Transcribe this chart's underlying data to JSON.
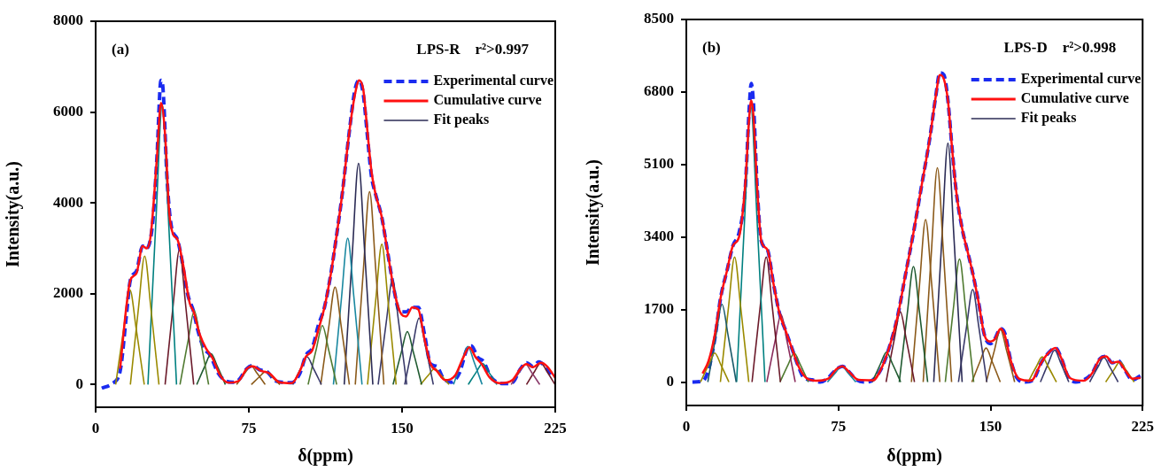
{
  "chart_data": [
    {
      "type": "line",
      "xlabel": "δ(ppm)",
      "ylabel": "Intensity(a.u.)",
      "xlim": [
        0,
        225
      ],
      "xticks": [
        0,
        75,
        150,
        225
      ],
      "ylim": [
        -500,
        8000
      ],
      "yticks": [
        0,
        2000,
        4000,
        6000,
        8000
      ],
      "legend": "top right",
      "marker": "none",
      "line_style": "solid",
      "annotations": [
        "(a)",
        "LPS-R    r²>0.997"
      ],
      "series": [
        {
          "name": "Experimental curve",
          "color": "#1a2bf0",
          "line_style": "dashed",
          "x": [
            3,
            8,
            12,
            15,
            17,
            20,
            23,
            25,
            28,
            30,
            32,
            33,
            35,
            37,
            40,
            42,
            45,
            48,
            50,
            53,
            56,
            60,
            63,
            67,
            70,
            74,
            77,
            80,
            84,
            88,
            92,
            96,
            100,
            103,
            106,
            109,
            112,
            115,
            118,
            121,
            124,
            127,
            129,
            131,
            133,
            135,
            137,
            140,
            143,
            146,
            149,
            152,
            155,
            158,
            161,
            164,
            167,
            170,
            174,
            178,
            182,
            184,
            187,
            190,
            193,
            196,
            200,
            204,
            208,
            211,
            214,
            217,
            220,
            224
          ],
          "values": [
            -80,
            20,
            300,
            1500,
            2300,
            2500,
            3050,
            3000,
            3600,
            5000,
            6700,
            6500,
            4500,
            3500,
            3200,
            2800,
            2000,
            1600,
            1200,
            800,
            650,
            250,
            100,
            50,
            100,
            350,
            420,
            330,
            280,
            80,
            50,
            40,
            250,
            650,
            800,
            1300,
            1700,
            2400,
            3300,
            4300,
            5500,
            6500,
            6700,
            6400,
            5500,
            4600,
            4200,
            3700,
            2900,
            2100,
            1600,
            1600,
            1700,
            1700,
            1100,
            450,
            400,
            150,
            50,
            250,
            800,
            850,
            600,
            500,
            200,
            60,
            20,
            40,
            350,
            480,
            400,
            500,
            400,
            150
          ]
        },
        {
          "name": "Cumulative curve",
          "color": "#ff1010",
          "x": [
            12,
            15,
            17,
            20,
            23,
            25,
            27,
            30,
            32,
            34,
            36,
            38,
            40,
            43,
            46,
            48,
            51,
            54,
            57,
            61,
            65,
            70,
            74,
            77,
            81,
            85,
            90,
            96,
            100,
            103,
            106,
            109,
            112,
            115,
            118,
            121,
            124,
            127,
            129,
            131,
            133,
            135,
            137,
            140,
            143,
            146,
            149,
            152,
            155,
            158,
            161,
            164,
            167,
            171,
            176,
            180,
            183,
            186,
            189,
            193,
            198,
            204,
            208,
            211,
            214,
            218,
            221,
            225
          ],
          "values": [
            350,
            1700,
            2300,
            2450,
            3050,
            3000,
            3300,
            5000,
            6200,
            5500,
            3800,
            3300,
            3200,
            2600,
            1800,
            1600,
            1100,
            800,
            600,
            200,
            40,
            80,
            350,
            400,
            300,
            250,
            50,
            30,
            300,
            620,
            750,
            1200,
            1700,
            2400,
            3300,
            4300,
            5500,
            6400,
            6700,
            6500,
            5600,
            4700,
            4200,
            3700,
            2900,
            2100,
            1600,
            1500,
            1700,
            1650,
            1000,
            450,
            300,
            100,
            200,
            600,
            820,
            600,
            450,
            150,
            30,
            100,
            350,
            450,
            380,
            480,
            400,
            150
          ]
        },
        {
          "color": "#9a8a00",
          "x": [
            9.8,
            13.8,
            16.8,
            19.8,
            23.8
          ],
          "values": [
            0,
            1248,
            2080,
            1248,
            0
          ]
        },
        {
          "color": "#9a8a00",
          "x": [
            17,
            21,
            24,
            27,
            31
          ],
          "values": [
            0,
            1698,
            2830,
            1698,
            0
          ]
        },
        {
          "color": "#008080",
          "x": [
            25.6,
            29.6,
            32.6,
            35.6,
            39.6
          ],
          "values": [
            0,
            3693,
            6155,
            3693,
            0
          ]
        },
        {
          "color": "#6b1a2a",
          "x": [
            34,
            38,
            41,
            44,
            48
          ],
          "values": [
            0,
            1776,
            2960,
            1776,
            0
          ]
        },
        {
          "color": "#4f7a30",
          "x": [
            41.3,
            45.3,
            48.3,
            51.3,
            55.3
          ],
          "values": [
            0,
            975,
            1625,
            975,
            0
          ]
        },
        {
          "color": "#1f5a30",
          "x": [
            49.5,
            53.5,
            56.5,
            59.5,
            63.5
          ],
          "values": [
            0,
            408,
            680,
            408,
            0
          ]
        },
        {
          "color": "#8b5a1a",
          "x": [
            69,
            73,
            76,
            79,
            83
          ],
          "values": [
            0,
            249,
            415,
            249,
            0
          ]
        },
        {
          "color": "#8b5a1a",
          "x": [
            76.2,
            80.2,
            83.2,
            86.2,
            90.2
          ],
          "values": [
            0,
            172,
            287,
            172,
            0
          ]
        },
        {
          "color": "#3a3a6a",
          "x": [
            96.5,
            100.5,
            103.5,
            106.5,
            110.5
          ],
          "values": [
            0,
            367,
            612,
            367,
            0
          ]
        },
        {
          "color": "#4f7a30",
          "x": [
            104,
            108,
            111,
            114,
            118
          ],
          "values": [
            0,
            778,
            1297,
            778,
            0
          ]
        },
        {
          "color": "#8b5a1a",
          "x": [
            110.2,
            114.2,
            117.2,
            120.2,
            124.2
          ],
          "values": [
            0,
            1288,
            2146,
            1288,
            0
          ]
        },
        {
          "color": "#1a88a0",
          "x": [
            116.4,
            120.4,
            123.4,
            126.4,
            130.4
          ],
          "values": [
            0,
            1933,
            3221,
            1933,
            0
          ]
        },
        {
          "name": "Fit peaks",
          "color": "#2b2b55",
          "x": [
            121.7,
            125.7,
            128.7,
            131.7,
            135.7
          ],
          "values": [
            0,
            2922,
            4870,
            2922,
            0
          ]
        },
        {
          "color": "#8b5a1a",
          "x": [
            127.1,
            131.1,
            134.1,
            137.1,
            141.1
          ],
          "values": [
            0,
            2547,
            4245,
            2547,
            0
          ]
        },
        {
          "color": "#9a8a00",
          "x": [
            133.1,
            137.1,
            140.1,
            143.1,
            147.1
          ],
          "values": [
            0,
            1854,
            3090,
            1854,
            0
          ]
        },
        {
          "color": "#3a3a6a",
          "x": [
            138.3,
            142.3,
            145.3,
            148.3,
            152.3
          ],
          "values": [
            0,
            1385,
            2308,
            1385,
            0
          ]
        },
        {
          "color": "#1f5a30",
          "x": [
            145.6,
            149.6,
            152.6,
            155.6,
            159.6
          ],
          "values": [
            0,
            701,
            1168,
            701,
            0
          ]
        },
        {
          "color": "#3a3a6a",
          "x": [
            151.3,
            155.3,
            158.3,
            161.3,
            165.3
          ],
          "values": [
            0,
            877,
            1461,
            877,
            0
          ]
        },
        {
          "color": "#9a8a00",
          "x": [
            159,
            163,
            166,
            169,
            173
          ],
          "values": [
            0,
            211,
            352,
            211,
            0
          ]
        },
        {
          "color": "#1a88a0",
          "x": [
            175.2,
            179.2,
            182.2,
            185.2,
            189.2
          ],
          "values": [
            0,
            505,
            841,
            505,
            0
          ]
        },
        {
          "color": "#008080",
          "x": [
            182.4,
            186.4,
            189.4,
            192.4,
            196.4
          ],
          "values": [
            0,
            278,
            463,
            278,
            0
          ]
        },
        {
          "color": "#8a3a6a",
          "x": [
            203.4,
            207.4,
            210.4,
            213.4,
            217.4
          ],
          "values": [
            0,
            270,
            450,
            270,
            0
          ]
        },
        {
          "color": "#6b1a2a",
          "x": [
            210.9,
            214.9,
            217.9,
            220.9,
            224.9
          ],
          "values": [
            0,
            290,
            483,
            290,
            0
          ]
        }
      ]
    },
    {
      "type": "line",
      "xlabel": "δ(ppm)",
      "ylabel": "Intensity(a.u.)",
      "xlim": [
        0,
        225
      ],
      "xticks": [
        0,
        75,
        150,
        225
      ],
      "ylim": [
        -550,
        8500
      ],
      "yticks": [
        0,
        1700,
        3400,
        5100,
        6800,
        8500
      ],
      "legend": "top right",
      "marker": "none",
      "line_style": "solid",
      "annotations": [
        "(b)",
        "LPS-D    r²>0.998"
      ],
      "series": [
        {
          "name": "Experimental curve",
          "color": "#1a2bf0",
          "line_style": "dashed",
          "x": [
            3,
            8,
            11,
            14,
            17,
            20,
            23,
            26,
            29,
            31,
            32,
            33,
            35,
            37,
            40,
            43,
            46,
            49,
            52,
            55,
            58,
            62,
            66,
            70,
            74,
            77,
            80,
            84,
            88,
            92,
            96,
            100,
            104,
            108,
            112,
            116,
            120,
            123,
            125,
            127,
            129,
            131,
            133,
            136,
            139,
            141,
            144,
            147,
            150,
            152,
            155,
            157,
            160,
            163,
            167,
            171,
            175,
            178,
            182,
            185,
            188,
            192,
            196,
            200,
            204,
            207,
            210,
            213,
            216,
            220,
            224
          ],
          "values": [
            0,
            20,
            300,
            1000,
            2000,
            2600,
            3200,
            3500,
            4500,
            6400,
            7000,
            6600,
            4500,
            3300,
            3100,
            2300,
            1600,
            1200,
            800,
            400,
            100,
            50,
            0,
            100,
            300,
            370,
            250,
            50,
            0,
            50,
            300,
            800,
            1500,
            2500,
            3500,
            4600,
            5700,
            6700,
            7250,
            7200,
            6600,
            5500,
            4500,
            3600,
            3000,
            2600,
            1900,
            1100,
            900,
            1000,
            1250,
            1150,
            500,
            100,
            0,
            50,
            450,
            650,
            800,
            550,
            150,
            0,
            50,
            200,
            550,
            600,
            450,
            500,
            300,
            50,
            150
          ]
        },
        {
          "name": "Cumulative curve",
          "color": "#ff1010",
          "x": [
            8,
            11,
            14,
            17,
            20,
            23,
            26,
            29,
            31,
            32,
            33,
            35,
            37,
            40,
            43,
            46,
            49,
            52,
            55,
            59,
            64,
            70,
            74,
            77,
            80,
            85,
            92,
            96,
            100,
            104,
            108,
            112,
            116,
            120,
            123,
            125,
            127,
            129,
            131,
            133,
            136,
            139,
            141,
            144,
            147,
            150,
            152,
            155,
            157,
            160,
            164,
            170,
            175,
            178,
            182,
            185,
            189,
            196,
            200,
            204,
            207,
            210,
            213,
            216,
            220,
            224
          ],
          "values": [
            200,
            500,
            1100,
            2000,
            2600,
            3200,
            3400,
            4600,
            6200,
            6600,
            6300,
            4500,
            3300,
            3100,
            2300,
            1600,
            1200,
            800,
            400,
            100,
            30,
            80,
            300,
            370,
            250,
            50,
            40,
            300,
            800,
            1500,
            2500,
            3500,
            4600,
            5700,
            6700,
            7200,
            7100,
            6600,
            5500,
            4500,
            3600,
            3000,
            2600,
            1900,
            1100,
            950,
            1000,
            1250,
            1100,
            500,
            80,
            30,
            450,
            650,
            800,
            550,
            100,
            30,
            200,
            550,
            600,
            450,
            480,
            300,
            80,
            100
          ]
        },
        {
          "color": "#9a8a00",
          "x": [
            7,
            11,
            14,
            17,
            21
          ],
          "values": [
            0,
            408,
            680,
            408,
            0
          ]
        },
        {
          "color": "#1a5a6a",
          "x": [
            10.6,
            14.6,
            17.6,
            20.6,
            24.6
          ],
          "values": [
            0,
            1093,
            1822,
            1093,
            0
          ]
        },
        {
          "color": "#9a8a00",
          "x": [
            16.8,
            20.8,
            23.8,
            26.8,
            30.8
          ],
          "values": [
            0,
            1758,
            2930,
            1758,
            0
          ]
        },
        {
          "color": "#008080",
          "x": [
            24.8,
            28.8,
            31.8,
            34.8,
            38.8
          ],
          "values": [
            0,
            3878,
            6463,
            3878,
            0
          ]
        },
        {
          "color": "#6b1a2a",
          "x": [
            32.4,
            36.4,
            39.4,
            42.4,
            46.4
          ],
          "values": [
            0,
            1758,
            2930,
            1758,
            0
          ]
        },
        {
          "color": "#8a2a5a",
          "x": [
            39.7,
            43.7,
            46.7,
            49.7,
            53.7
          ],
          "values": [
            0,
            948,
            1580,
            948,
            0
          ]
        },
        {
          "color": "#4f7a30",
          "x": [
            46.2,
            50.2,
            53.2,
            56.2,
            60.2
          ],
          "values": [
            0,
            408,
            680,
            408,
            0
          ]
        },
        {
          "color": "#1a88a0",
          "x": [
            69.6,
            73.6,
            76.6,
            79.6,
            83.6
          ],
          "values": [
            0,
            221,
            368,
            221,
            0
          ]
        },
        {
          "color": "#1f5a30",
          "x": [
            91.7,
            95.7,
            98.7,
            101.7,
            105.7
          ],
          "values": [
            0,
            420,
            700,
            420,
            0
          ]
        },
        {
          "color": "#6b1a2a",
          "x": [
            98.5,
            102.5,
            105.5,
            108.5,
            112.5
          ],
          "values": [
            0,
            989,
            1648,
            989,
            0
          ]
        },
        {
          "color": "#1f5a30",
          "x": [
            105,
            109,
            112,
            115,
            119
          ],
          "values": [
            0,
            1625,
            2708,
            1625,
            0
          ]
        },
        {
          "color": "#8b5a1a",
          "x": [
            111,
            115,
            118,
            121,
            125
          ],
          "values": [
            0,
            2286,
            3810,
            2286,
            0
          ]
        },
        {
          "color": "#8b5a1a",
          "x": [
            116.8,
            120.8,
            123.8,
            126.8,
            130.8
          ],
          "values": [
            0,
            3013,
            5022,
            3013,
            0
          ]
        },
        {
          "name": "Fit peaks",
          "color": "#2b2b55",
          "x": [
            122,
            126,
            129,
            132,
            136
          ],
          "values": [
            0,
            3358,
            5596,
            3358,
            0
          ]
        },
        {
          "color": "#4f7a30",
          "x": [
            127.7,
            131.7,
            134.7,
            137.7,
            141.7
          ],
          "values": [
            0,
            1729,
            2882,
            1729,
            0
          ]
        },
        {
          "color": "#3a3a6a",
          "x": [
            134.2,
            138.2,
            141.2,
            144.2,
            148.2
          ],
          "values": [
            0,
            1301,
            2168,
            1301,
            0
          ]
        },
        {
          "color": "#8b5a1a",
          "x": [
            140.8,
            144.8,
            147.8,
            150.8,
            154.8
          ],
          "values": [
            0,
            478,
            796,
            478,
            0
          ]
        },
        {
          "color": "#8b5a1a",
          "x": [
            147.9,
            151.9,
            154.9,
            157.9,
            161.9
          ],
          "values": [
            0,
            740,
            1233,
            740,
            0
          ]
        },
        {
          "color": "#9a8a00",
          "x": [
            168.5,
            172.5,
            175.5,
            178.5,
            182.5
          ],
          "values": [
            0,
            353,
            589,
            353,
            0
          ]
        },
        {
          "color": "#3a3a6a",
          "x": [
            174.6,
            178.6,
            181.6,
            184.6,
            188.6
          ],
          "values": [
            0,
            449,
            748,
            449,
            0
          ]
        },
        {
          "color": "#3a3a6a",
          "x": [
            198.9,
            202.9,
            205.9,
            208.9,
            212.9
          ],
          "values": [
            0,
            345,
            575,
            345,
            0
          ]
        },
        {
          "color": "#9a8a00",
          "x": [
            206.8,
            210.8,
            213.8,
            216.8,
            220.8
          ],
          "values": [
            0,
            283,
            472,
            283,
            0
          ]
        }
      ]
    }
  ]
}
